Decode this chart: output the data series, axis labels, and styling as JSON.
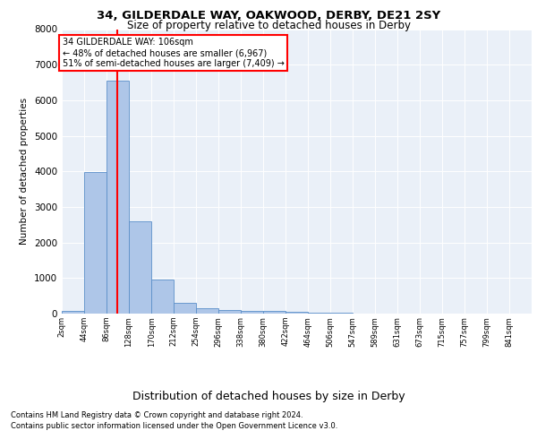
{
  "title1": "34, GILDERDALE WAY, OAKWOOD, DERBY, DE21 2SY",
  "title2": "Size of property relative to detached houses in Derby",
  "xlabel": "Distribution of detached houses by size in Derby",
  "ylabel": "Number of detached properties",
  "bar_left_edges": [
    2,
    44,
    86,
    128,
    170,
    212,
    254,
    296,
    338,
    380,
    422,
    464,
    506,
    547,
    589,
    631,
    673,
    715,
    757,
    799
  ],
  "bar_heights": [
    70,
    3980,
    6560,
    2600,
    960,
    310,
    140,
    95,
    70,
    65,
    50,
    35,
    20,
    10,
    8,
    5,
    3,
    2,
    2,
    2
  ],
  "bin_width": 42,
  "bar_color": "#aec6e8",
  "bar_edge_color": "#5b8fc9",
  "vline_x": 106,
  "vline_color": "red",
  "ylim": [
    0,
    8000
  ],
  "yticks": [
    0,
    1000,
    2000,
    3000,
    4000,
    5000,
    6000,
    7000,
    8000
  ],
  "xtick_labels": [
    "2sqm",
    "44sqm",
    "86sqm",
    "128sqm",
    "170sqm",
    "212sqm",
    "254sqm",
    "296sqm",
    "338sqm",
    "380sqm",
    "422sqm",
    "464sqm",
    "506sqm",
    "547sqm",
    "589sqm",
    "631sqm",
    "673sqm",
    "715sqm",
    "757sqm",
    "799sqm",
    "841sqm"
  ],
  "annotation_title": "34 GILDERDALE WAY: 106sqm",
  "annotation_line1": "← 48% of detached houses are smaller (6,967)",
  "annotation_line2": "51% of semi-detached houses are larger (7,409) →",
  "annotation_box_color": "white",
  "annotation_box_edge": "red",
  "plot_bg_color": "#eaf0f8",
  "footer1": "Contains HM Land Registry data © Crown copyright and database right 2024.",
  "footer2": "Contains public sector information licensed under the Open Government Licence v3.0."
}
